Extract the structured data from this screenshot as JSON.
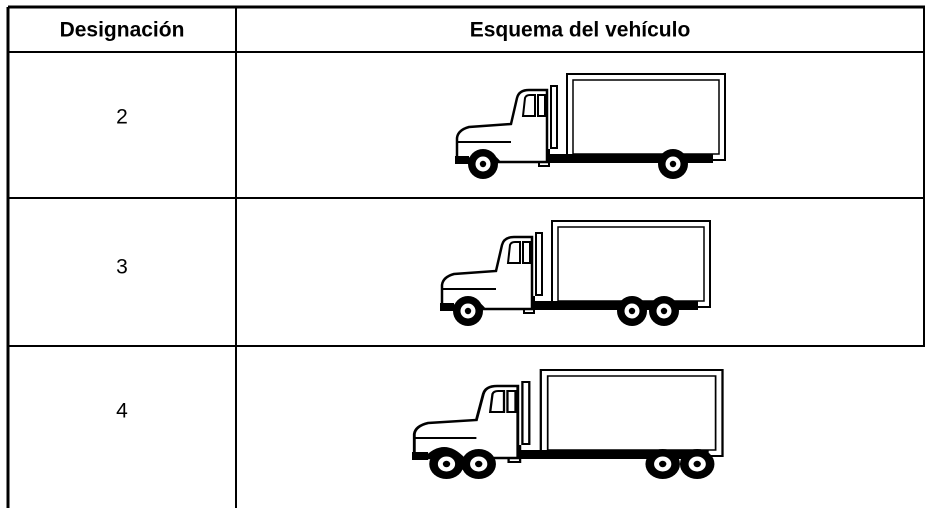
{
  "table": {
    "headers": [
      "Designación",
      "Esquema del vehículo"
    ],
    "rows": [
      [
        "2"
      ],
      [
        "3"
      ],
      [
        "4"
      ]
    ]
  }
}
